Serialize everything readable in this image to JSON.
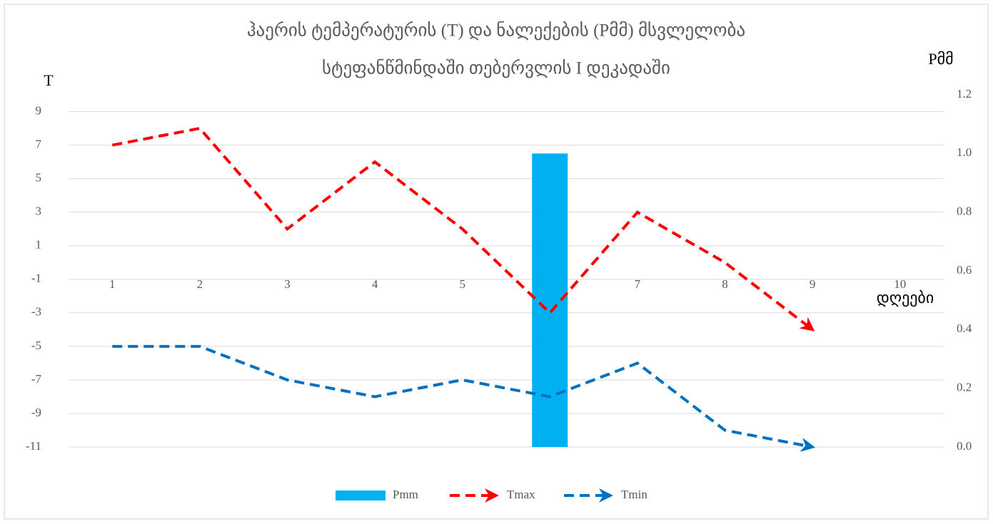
{
  "chart_data": {
    "type": "combo",
    "title": [
      "ჰაერის ტემპერატურის (T) და ნალექების (Pმმ)  მსვლელობა",
      "სტეფანწმინდაში  თებერვლის I დეკადაში"
    ],
    "y_label": "T",
    "y2_label": "Pმმ",
    "x_label": "დღეები",
    "categories": [
      "1",
      "2",
      "3",
      "4",
      "5",
      "6",
      "7",
      "8",
      "9",
      "10"
    ],
    "ylim": [
      -11,
      10
    ],
    "yticks": [
      9,
      7,
      5,
      3,
      1,
      -1,
      -3,
      -5,
      -7,
      -9,
      -11
    ],
    "y2lim": [
      0,
      1.2
    ],
    "y2ticks": [
      {
        "value": 0,
        "label": "0.0"
      },
      {
        "value": 0.2,
        "label": "0.2"
      },
      {
        "value": 0.4,
        "label": "0.4"
      },
      {
        "value": 0.6,
        "label": "0.6"
      },
      {
        "value": 0.8,
        "label": "0.8"
      },
      {
        "value": 1,
        "label": "1.0"
      },
      {
        "value": 1.2,
        "label": "1.2"
      }
    ],
    "grid": true,
    "legend": "bottom",
    "series": [
      {
        "name": "Pmm",
        "type": "bar",
        "axis": "y2",
        "color": "#00b0f0",
        "values": [
          0,
          0,
          0,
          0,
          0,
          1.0,
          0,
          0,
          0,
          0
        ]
      },
      {
        "name": "Tmax",
        "type": "line",
        "color": "#ff0000",
        "values": [
          7,
          8,
          2,
          6,
          2,
          -3,
          3,
          0,
          -4,
          null
        ]
      },
      {
        "name": "Tmin",
        "type": "line",
        "color": "#0070c0",
        "values": [
          -5,
          -5,
          -7,
          -8,
          -7,
          -8,
          -6,
          -10,
          -11,
          null
        ]
      }
    ]
  }
}
